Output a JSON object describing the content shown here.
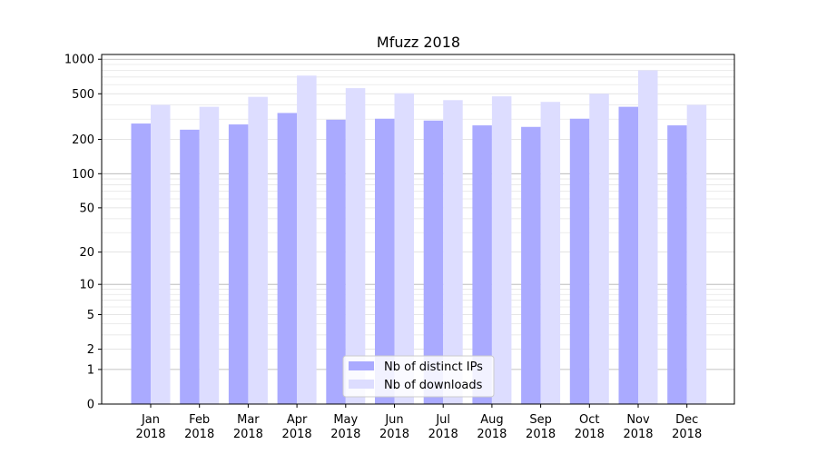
{
  "chart_data": {
    "type": "bar",
    "title": "Mfuzz 2018",
    "xlabel": "",
    "ylabel": "",
    "categories": [
      [
        "Jan",
        "2018"
      ],
      [
        "Feb",
        "2018"
      ],
      [
        "Mar",
        "2018"
      ],
      [
        "Apr",
        "2018"
      ],
      [
        "May",
        "2018"
      ],
      [
        "Jun",
        "2018"
      ],
      [
        "Jul",
        "2018"
      ],
      [
        "Aug",
        "2018"
      ],
      [
        "Sep",
        "2018"
      ],
      [
        "Oct",
        "2018"
      ],
      [
        "Nov",
        "2018"
      ],
      [
        "Dec",
        "2018"
      ]
    ],
    "series": [
      {
        "name": "Nb of distinct IPs",
        "color": "#aaaaff",
        "values": [
          275,
          243,
          270,
          340,
          297,
          303,
          292,
          265,
          257,
          303,
          385,
          265
        ]
      },
      {
        "name": "Nb of downloads",
        "color": "#ddddff",
        "values": [
          400,
          385,
          470,
          720,
          560,
          505,
          440,
          475,
          425,
          500,
          800,
          400
        ]
      }
    ],
    "yscale": "log",
    "ylim": [
      0,
      1100
    ],
    "yticks": [
      0,
      1,
      2,
      5,
      10,
      20,
      50,
      100,
      200,
      500,
      1000
    ],
    "ytick_labels": [
      "0",
      "1",
      "2",
      "5",
      "10",
      "20",
      "50",
      "100",
      "200",
      "500",
      "1000"
    ],
    "grid": true,
    "legend_position": "lower-center"
  }
}
